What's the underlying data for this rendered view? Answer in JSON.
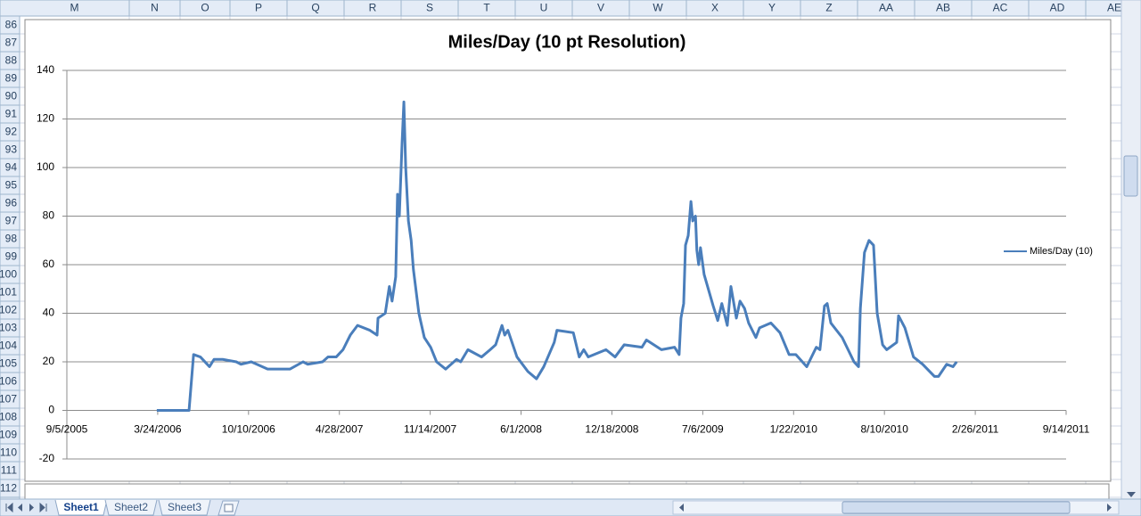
{
  "sheet": {
    "column_headers": [
      "M",
      "N",
      "O",
      "P",
      "Q",
      "R",
      "S",
      "T",
      "U",
      "V",
      "W",
      "X",
      "Y",
      "Z",
      "AA",
      "AB",
      "AC",
      "AD",
      "AE"
    ],
    "row_headers": [
      86,
      87,
      88,
      89,
      90,
      91,
      92,
      93,
      94,
      95,
      96,
      97,
      98,
      99,
      100,
      101,
      102,
      103,
      104,
      105,
      106,
      107,
      108,
      109,
      110,
      111,
      112
    ],
    "tabs": [
      "Sheet1",
      "Sheet2",
      "Sheet3"
    ]
  },
  "chart_data": {
    "type": "line",
    "title": "Miles/Day (10 pt Resolution)",
    "x": [
      "2006-03-22",
      "2006-06-01",
      "2006-06-11",
      "2006-06-26",
      "2006-07-16",
      "2006-07-26",
      "2006-08-14",
      "2006-09-13",
      "2006-09-23",
      "2006-10-16",
      "2006-11-21",
      "2006-12-20",
      "2007-01-09",
      "2007-02-07",
      "2007-02-17",
      "2007-03-22",
      "2007-04-03",
      "2007-04-21",
      "2007-05-06",
      "2007-05-22",
      "2007-06-07",
      "2007-07-04",
      "2007-07-20",
      "2007-07-22",
      "2007-08-07",
      "2007-08-16",
      "2007-08-22",
      "2007-08-30",
      "2007-09-03",
      "2007-09-07",
      "2007-09-13",
      "2007-09-17",
      "2007-09-21",
      "2007-09-27",
      "2007-10-03",
      "2007-10-08",
      "2007-10-20",
      "2007-11-01",
      "2007-11-15",
      "2007-11-28",
      "2007-12-18",
      "2008-01-11",
      "2008-01-20",
      "2008-02-05",
      "2008-03-06",
      "2008-03-25",
      "2008-04-06",
      "2008-04-20",
      "2008-04-26",
      "2008-05-03",
      "2008-05-23",
      "2008-06-16",
      "2008-07-05",
      "2008-07-21",
      "2008-08-13",
      "2008-08-19",
      "2008-09-24",
      "2008-10-07",
      "2008-10-17",
      "2008-10-27",
      "2008-12-05",
      "2008-12-25",
      "2009-01-14",
      "2009-02-22",
      "2009-03-04",
      "2009-04-06",
      "2009-05-05",
      "2009-05-15",
      "2009-05-19",
      "2009-05-25",
      "2009-05-29",
      "2009-06-04",
      "2009-06-10",
      "2009-06-14",
      "2009-06-20",
      "2009-06-23",
      "2009-06-27",
      "2009-07-01",
      "2009-07-09",
      "2009-07-29",
      "2009-08-08",
      "2009-08-17",
      "2009-08-29",
      "2009-09-06",
      "2009-09-18",
      "2009-09-26",
      "2009-10-06",
      "2009-10-15",
      "2009-10-31",
      "2009-11-08",
      "2009-12-03",
      "2009-12-23",
      "2010-01-12",
      "2010-01-27",
      "2010-02-20",
      "2010-03-13",
      "2010-03-21",
      "2010-03-31",
      "2010-04-06",
      "2010-04-14",
      "2010-05-09",
      "2010-06-04",
      "2010-06-14",
      "2010-06-18",
      "2010-06-27",
      "2010-07-07",
      "2010-07-17",
      "2010-07-25",
      "2010-08-06",
      "2010-08-15",
      "2010-09-06",
      "2010-09-10",
      "2010-09-24",
      "2010-10-13",
      "2010-11-02",
      "2010-11-28",
      "2010-12-07",
      "2010-12-25",
      "2011-01-08",
      "2011-01-16"
    ],
    "series": [
      {
        "name": "Miles/Day (10)",
        "color": "#4a7ebb",
        "values": [
          0,
          0,
          23,
          22,
          18,
          21,
          21,
          20,
          19,
          20,
          17,
          17,
          17,
          20,
          19,
          20,
          22,
          22,
          25,
          31,
          35,
          33,
          31,
          38,
          40,
          51,
          45,
          55,
          89,
          80,
          110,
          127,
          100,
          78,
          70,
          58,
          40,
          30,
          26,
          20,
          17,
          21,
          20,
          25,
          22,
          25,
          27,
          35,
          31,
          33,
          22,
          16,
          13,
          18,
          28,
          33,
          32,
          22,
          25,
          22,
          25,
          22,
          27,
          26,
          29,
          25,
          26,
          23,
          38,
          44,
          68,
          72,
          86,
          78,
          80,
          66,
          60,
          67,
          56,
          43,
          37,
          44,
          35,
          51,
          38,
          45,
          42,
          36,
          30,
          34,
          36,
          32,
          23,
          23,
          18,
          26,
          25,
          43,
          44,
          36,
          30,
          20,
          18,
          42,
          65,
          70,
          68,
          40,
          27,
          25,
          28,
          39,
          34,
          22,
          19,
          14,
          14,
          19,
          18,
          20
        ]
      }
    ],
    "xlim": [
      "2005-09-05",
      "2011-09-14"
    ],
    "xticks": [
      {
        "value": "2005-09-05",
        "label": "9/5/2005"
      },
      {
        "value": "2006-03-24",
        "label": "3/24/2006"
      },
      {
        "value": "2006-10-10",
        "label": "10/10/2006"
      },
      {
        "value": "2007-04-28",
        "label": "4/28/2007"
      },
      {
        "value": "2007-11-14",
        "label": "11/14/2007"
      },
      {
        "value": "2008-06-01",
        "label": "6/1/2008"
      },
      {
        "value": "2008-12-18",
        "label": "12/18/2008"
      },
      {
        "value": "2009-07-06",
        "label": "7/6/2009"
      },
      {
        "value": "2010-01-22",
        "label": "1/22/2010"
      },
      {
        "value": "2010-08-10",
        "label": "8/10/2010"
      },
      {
        "value": "2011-02-26",
        "label": "2/26/2011"
      },
      {
        "value": "2011-09-14",
        "label": "9/14/2011"
      }
    ],
    "ylim": [
      -20,
      140
    ],
    "yticks": [
      -20,
      0,
      20,
      40,
      60,
      80,
      100,
      120,
      140
    ],
    "grid": true,
    "legend": "right"
  }
}
